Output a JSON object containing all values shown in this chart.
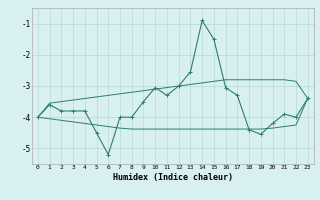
{
  "xlabel": "Humidex (Indice chaleur)",
  "x": [
    0,
    1,
    2,
    3,
    4,
    5,
    6,
    7,
    8,
    9,
    10,
    11,
    12,
    13,
    14,
    15,
    16,
    17,
    18,
    19,
    20,
    21,
    22,
    23
  ],
  "main_line": [
    -4.0,
    -3.6,
    -3.8,
    -3.8,
    -3.8,
    -4.5,
    -5.2,
    -4.0,
    -4.0,
    -3.5,
    -3.05,
    -3.3,
    -3.0,
    -2.55,
    -0.9,
    -1.5,
    -3.05,
    -3.3,
    -4.4,
    -4.55,
    -4.2,
    -3.9,
    -4.0,
    -3.4
  ],
  "upper_line": [
    -4.0,
    -3.55,
    -3.5,
    -3.45,
    -3.4,
    -3.35,
    -3.3,
    -3.25,
    -3.2,
    -3.15,
    -3.1,
    -3.05,
    -3.0,
    -2.95,
    -2.9,
    -2.85,
    -2.8,
    -2.8,
    -2.8,
    -2.8,
    -2.8,
    -2.8,
    -2.85,
    -3.4
  ],
  "lower_line": [
    -4.0,
    -4.05,
    -4.1,
    -4.15,
    -4.2,
    -4.25,
    -4.3,
    -4.35,
    -4.38,
    -4.38,
    -4.38,
    -4.38,
    -4.38,
    -4.38,
    -4.38,
    -4.38,
    -4.38,
    -4.38,
    -4.38,
    -4.38,
    -4.35,
    -4.3,
    -4.25,
    -3.4
  ],
  "line_color": "#2e7d6e",
  "bg_color": "#d8f0f0",
  "grid_color": "#b8d8d8",
  "ylim": [
    -5.5,
    -0.5
  ],
  "yticks": [
    -5,
    -4,
    -3,
    -2,
    -1
  ],
  "xlim": [
    -0.5,
    23.5
  ]
}
